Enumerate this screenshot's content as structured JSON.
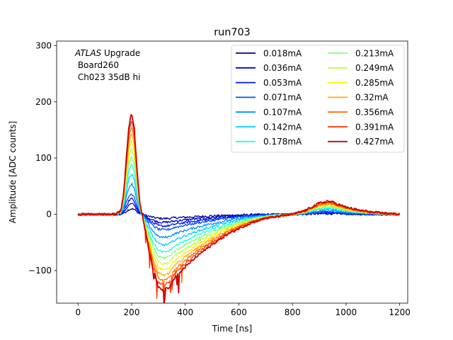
{
  "chart_data": {
    "type": "line",
    "title": "run703",
    "xlabel": "Time [ns]",
    "ylabel": "Amplitude [ADC counts]",
    "xlim": [
      -80,
      1230
    ],
    "ylim": [
      -158,
      308
    ],
    "xticks": [
      0,
      200,
      400,
      600,
      800,
      1000,
      1200
    ],
    "yticks": [
      -100,
      0,
      100,
      200,
      300
    ],
    "xtick_labels": [
      "0",
      "200",
      "400",
      "600",
      "800",
      "1000",
      "1200"
    ],
    "ytick_labels": [
      "−100",
      "0",
      "100",
      "200",
      "300"
    ],
    "grid": false,
    "legend_position": "top-right",
    "legend_columns": 2,
    "annotation": {
      "line1_italic": "ATLAS",
      "line1_rest": " Upgrade",
      "line2": " Board260",
      "line3": " Ch023 35dB hi"
    },
    "waveform_shape_x": [
      0,
      140,
      160,
      170,
      180,
      190,
      200,
      210,
      220,
      230,
      250,
      265,
      280,
      300,
      320,
      340,
      360,
      400,
      450,
      500,
      550,
      600,
      650,
      700,
      750,
      800,
      850,
      870,
      900,
      930,
      950,
      980,
      1000,
      1050,
      1100,
      1150,
      1200
    ],
    "waveform_shape_y": [
      0,
      0,
      0.04,
      0.2,
      0.55,
      0.88,
      1.0,
      0.84,
      0.45,
      0.12,
      -0.15,
      -0.36,
      -0.55,
      -0.72,
      -0.75,
      -0.72,
      -0.63,
      -0.52,
      -0.4,
      -0.3,
      -0.21,
      -0.14,
      -0.08,
      -0.04,
      -0.02,
      0,
      0.04,
      0.07,
      0.11,
      0.13,
      0.12,
      0.09,
      0.07,
      0.04,
      0.02,
      0.01,
      0
    ],
    "series": [
      {
        "name": "0.018mA",
        "color": "#00008f",
        "peak": 10
      },
      {
        "name": "0.036mA",
        "color": "#0000d5",
        "peak": 19
      },
      {
        "name": "0.053mA",
        "color": "#0010ff",
        "peak": 28
      },
      {
        "name": "0.071mA",
        "color": "#0050ff",
        "peak": 37
      },
      {
        "name": "0.107mA",
        "color": "#0090ff",
        "peak": 55
      },
      {
        "name": "0.142mA",
        "color": "#00d0ff",
        "peak": 73
      },
      {
        "name": "0.178mA",
        "color": "#20ffdf",
        "peak": 90
      },
      {
        "name": "0.213mA",
        "color": "#80ff80",
        "peak": 104
      },
      {
        "name": "0.249mA",
        "color": "#bfff40",
        "peak": 118
      },
      {
        "name": "0.285mA",
        "color": "#ffef00",
        "peak": 132
      },
      {
        "name": "0.32mA",
        "color": "#ffaf00",
        "peak": 145
      },
      {
        "name": "0.356mA",
        "color": "#ff6f00",
        "peak": 157
      },
      {
        "name": "0.391mA",
        "color": "#ff3000",
        "peak": 168
      },
      {
        "name": "0.427mA",
        "color": "#cf0000",
        "peak": 180
      }
    ]
  }
}
